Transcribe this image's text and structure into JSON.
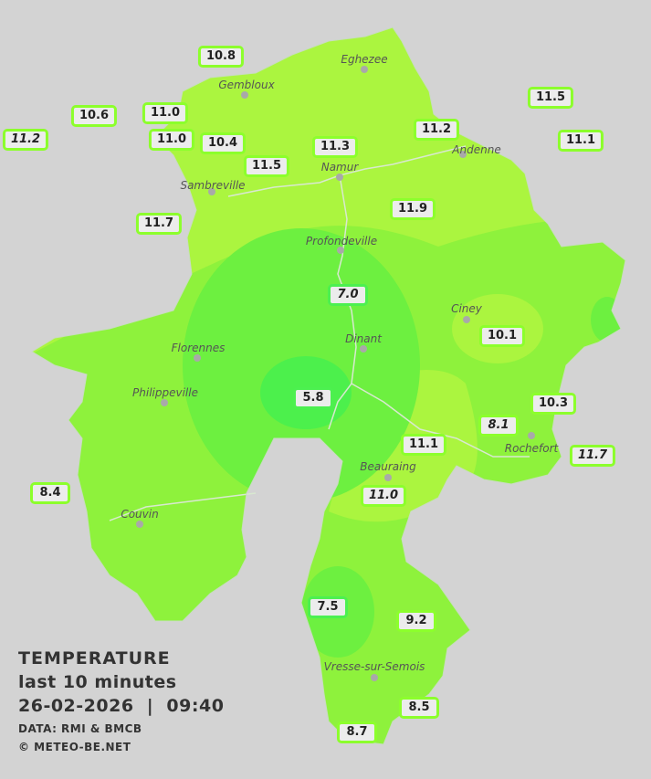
{
  "legend": {
    "title": "TEMPERATURE",
    "subtitle": "last 10 minutes",
    "datetime": "26-02-2026  |  09:40",
    "source": "DATA: RMI & BMCB",
    "copyright": "© METEO-BE.NET"
  },
  "colors": {
    "background": "#d3d3d3",
    "zone_warm": "#abf53f",
    "zone_mid": "#8ef23c",
    "zone_cool": "#6df040",
    "zone_cold": "#4cf04c",
    "station_border": "#8cff2c",
    "label_bg": "#ececec"
  },
  "towns": [
    "Eghezee",
    "Gembloux",
    "Andenne",
    "Namur",
    "Sambreville",
    "Profondeville",
    "Ciney",
    "Dinant",
    "Florennes",
    "Philippeville",
    "Rochefort",
    "Beauraing",
    "Couvin",
    "Vresse-sur-Semois"
  ],
  "stations": [
    {
      "value": "10.8"
    },
    {
      "value": "10.6"
    },
    {
      "value": "11.0"
    },
    {
      "value": "11.2",
      "italic": true
    },
    {
      "value": "11.0"
    },
    {
      "value": "10.4"
    },
    {
      "value": "11.5"
    },
    {
      "value": "11.3"
    },
    {
      "value": "11.2"
    },
    {
      "value": "11.5"
    },
    {
      "value": "11.1"
    },
    {
      "value": "11.7"
    },
    {
      "value": "11.9"
    },
    {
      "value": "7.0",
      "italic": true
    },
    {
      "value": "10.1"
    },
    {
      "value": "5.8"
    },
    {
      "value": "10.3"
    },
    {
      "value": "8.1",
      "italic": true
    },
    {
      "value": "11.1"
    },
    {
      "value": "11.7",
      "italic": true
    },
    {
      "value": "11.0",
      "italic": true
    },
    {
      "value": "8.4"
    },
    {
      "value": "7.5"
    },
    {
      "value": "9.2"
    },
    {
      "value": "8.5"
    },
    {
      "value": "8.7"
    }
  ]
}
